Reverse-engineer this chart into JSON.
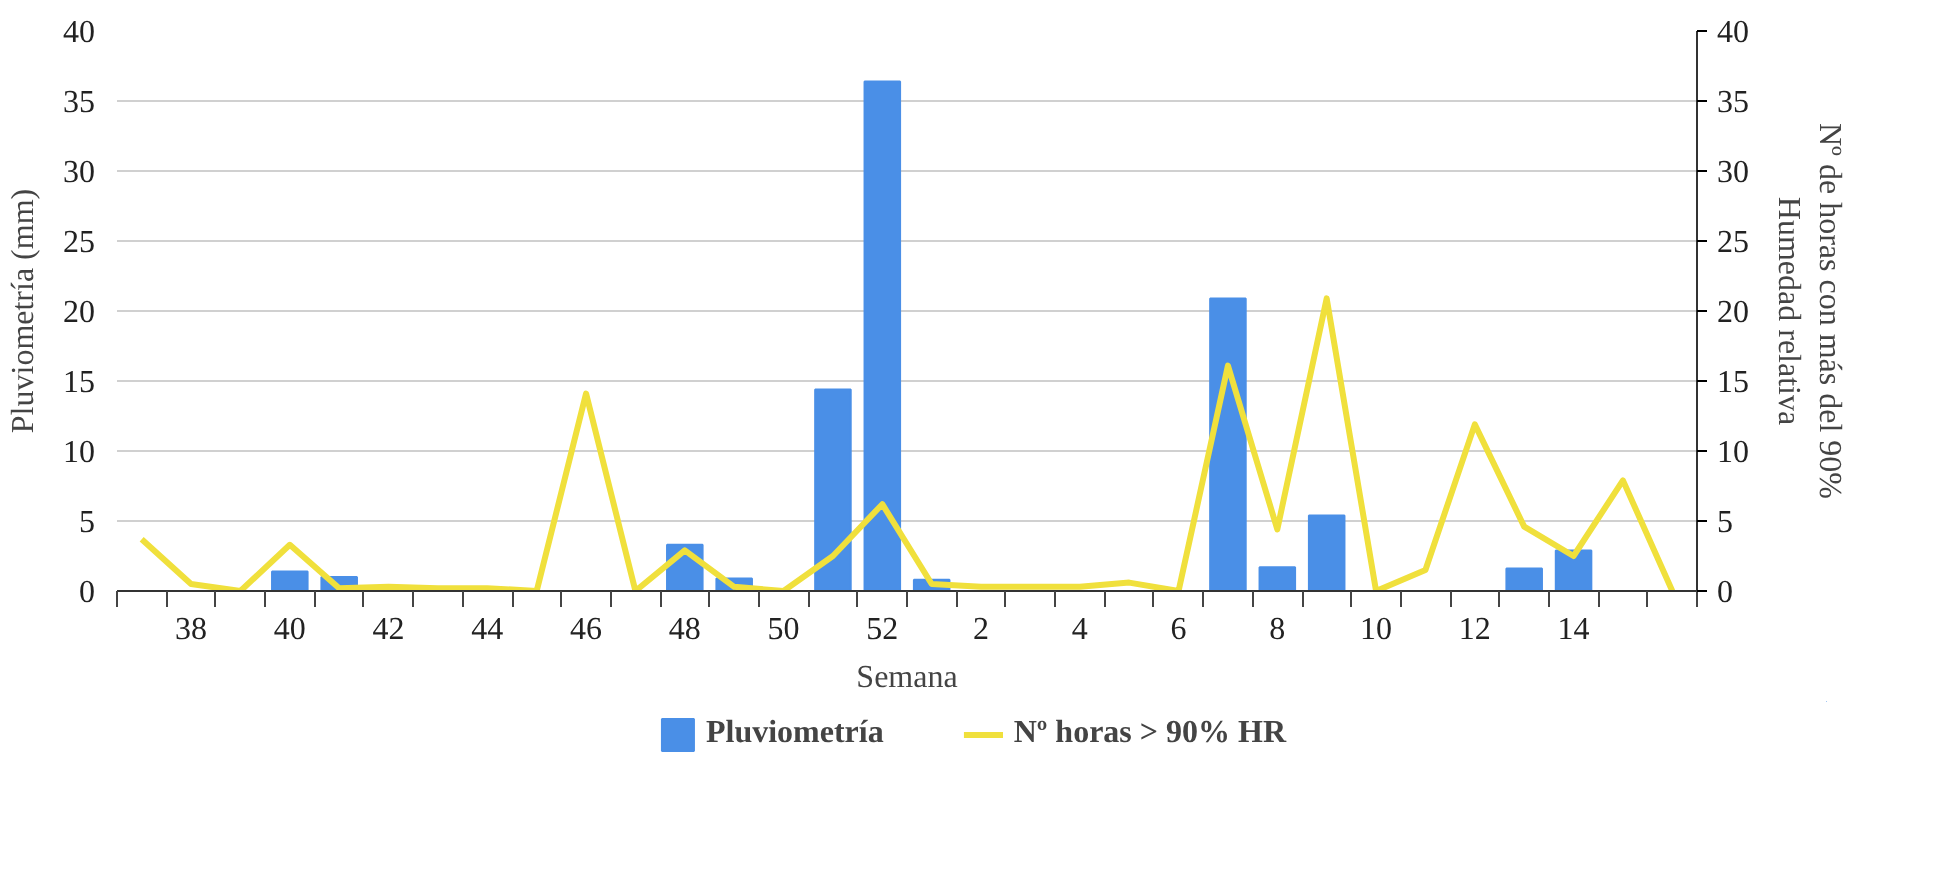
{
  "chart_data": {
    "type": "bar",
    "xlabel": "Semana",
    "ylabel": "Pluviometría (mm)",
    "y2label": "Nº de horas con más del 90%\nHumedad relativa",
    "categories": [
      null,
      "38",
      null,
      "40",
      null,
      "42",
      null,
      "44",
      null,
      "46",
      null,
      "48",
      null,
      "50",
      null,
      "52",
      null,
      "2",
      null,
      "4",
      null,
      "6",
      null,
      "8",
      null,
      "10",
      null,
      "12",
      null,
      "14",
      null,
      null
    ],
    "series": [
      {
        "name": "Pluviometría",
        "color": "#4a8fe7",
        "values": [
          0,
          0,
          0,
          1.4,
          1.0,
          0,
          0,
          0,
          0,
          0,
          0,
          3.3,
          0.9,
          0,
          14.4,
          36.4,
          0.8,
          0,
          0,
          0,
          0,
          0,
          20.9,
          1.7,
          5.4,
          0,
          0,
          0,
          1.6,
          2.9,
          0,
          0
        ]
      },
      {
        "name": "Nº horas > 90% HR",
        "type": "line",
        "axis": "y2",
        "color": "#f0e03c",
        "values": [
          3.7,
          0.5,
          0,
          3.3,
          0.2,
          0.3,
          0.2,
          0.2,
          0,
          14.1,
          0,
          2.9,
          0.3,
          0,
          2.5,
          6.2,
          0.5,
          0.3,
          0.3,
          0.3,
          0.6,
          0,
          16.1,
          4.4,
          20.9,
          0,
          1.5,
          11.9,
          4.6,
          2.5,
          7.9,
          0
        ]
      }
    ],
    "ylim": [
      0,
      40
    ],
    "yticks": [
      0,
      5,
      10,
      15,
      20,
      25,
      30,
      35,
      40
    ],
    "y2lim": [
      0,
      40
    ],
    "y2ticks": [
      0,
      5,
      10,
      15,
      20,
      25,
      30,
      35,
      40
    ],
    "grid": "y",
    "legend": "bottom",
    "line_style": "solid"
  }
}
